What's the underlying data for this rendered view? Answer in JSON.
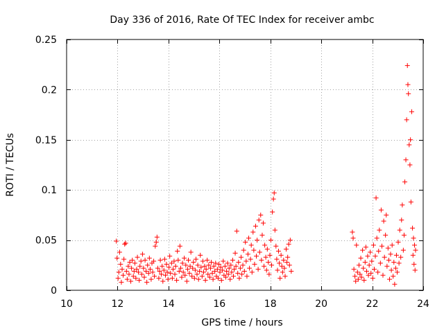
{
  "chart_data": {
    "type": "scatter",
    "title": "Day 336 of 2016, Rate Of TEC Index for receiver ambc",
    "xlabel": "GPS time / hours",
    "ylabel": "ROTI / TECUs",
    "xlim": [
      10,
      24
    ],
    "ylim": [
      0,
      0.25
    ],
    "xticks": [
      10,
      12,
      14,
      16,
      18,
      20,
      22,
      24
    ],
    "xtick_labels": [
      "10",
      "12",
      "14",
      "16",
      "18",
      "20",
      "22",
      "24"
    ],
    "yticks": [
      0,
      0.05,
      0.1,
      0.15,
      0.2,
      0.25
    ],
    "ytick_labels": [
      "0",
      "0.05",
      "0.1",
      "0.15",
      "0.2",
      "0.25"
    ],
    "grid": true,
    "marker": "+",
    "color": "#ff0000",
    "series": [
      {
        "name": "ROTI",
        "points": [
          [
            11.95,
            0.049
          ],
          [
            11.98,
            0.032
          ],
          [
            12.02,
            0.012
          ],
          [
            12.05,
            0.018
          ],
          [
            12.08,
            0.038
          ],
          [
            12.12,
            0.026
          ],
          [
            12.15,
            0.008
          ],
          [
            12.18,
            0.021
          ],
          [
            12.22,
            0.015
          ],
          [
            12.25,
            0.031
          ],
          [
            12.28,
            0.046
          ],
          [
            12.32,
            0.047
          ],
          [
            12.35,
            0.019
          ],
          [
            12.38,
            0.011
          ],
          [
            12.42,
            0.024
          ],
          [
            12.45,
            0.016
          ],
          [
            12.48,
            0.028
          ],
          [
            12.52,
            0.009
          ],
          [
            12.55,
            0.022
          ],
          [
            12.58,
            0.03
          ],
          [
            12.62,
            0.014
          ],
          [
            12.65,
            0.019
          ],
          [
            12.68,
            0.027
          ],
          [
            12.72,
            0.012
          ],
          [
            12.75,
            0.021
          ],
          [
            12.78,
            0.033
          ],
          [
            12.82,
            0.018
          ],
          [
            12.85,
            0.01
          ],
          [
            12.88,
            0.024
          ],
          [
            12.92,
            0.029
          ],
          [
            12.95,
            0.016
          ],
          [
            12.98,
            0.036
          ],
          [
            13.02,
            0.022
          ],
          [
            13.05,
            0.013
          ],
          [
            13.08,
            0.03
          ],
          [
            13.12,
            0.019
          ],
          [
            13.15,
            0.008
          ],
          [
            13.18,
            0.025
          ],
          [
            13.22,
            0.017
          ],
          [
            13.25,
            0.032
          ],
          [
            13.28,
            0.021
          ],
          [
            13.32,
            0.011
          ],
          [
            13.35,
            0.027
          ],
          [
            13.38,
            0.018
          ],
          [
            13.42,
            0.029
          ],
          [
            13.45,
            0.014
          ],
          [
            13.48,
            0.044
          ],
          [
            13.52,
            0.048
          ],
          [
            13.55,
            0.053
          ],
          [
            13.58,
            0.022
          ],
          [
            13.62,
            0.012
          ],
          [
            13.65,
            0.019
          ],
          [
            13.68,
            0.03
          ],
          [
            13.72,
            0.016
          ],
          [
            13.75,
            0.024
          ],
          [
            13.78,
            0.009
          ],
          [
            13.82,
            0.02
          ],
          [
            13.85,
            0.031
          ],
          [
            13.88,
            0.015
          ],
          [
            13.92,
            0.026
          ],
          [
            13.95,
            0.018
          ],
          [
            13.98,
            0.011
          ],
          [
            14.02,
            0.023
          ],
          [
            14.05,
            0.034
          ],
          [
            14.08,
            0.017
          ],
          [
            14.12,
            0.027
          ],
          [
            14.15,
            0.012
          ],
          [
            14.18,
            0.021
          ],
          [
            14.22,
            0.029
          ],
          [
            14.25,
            0.016
          ],
          [
            14.28,
            0.024
          ],
          [
            14.32,
            0.01
          ],
          [
            14.35,
            0.039
          ],
          [
            14.38,
            0.03
          ],
          [
            14.42,
            0.019
          ],
          [
            14.45,
            0.044
          ],
          [
            14.48,
            0.022
          ],
          [
            14.52,
            0.013
          ],
          [
            14.55,
            0.027
          ],
          [
            14.58,
            0.018
          ],
          [
            14.62,
            0.032
          ],
          [
            14.65,
            0.015
          ],
          [
            14.68,
            0.025
          ],
          [
            14.72,
            0.009
          ],
          [
            14.75,
            0.021
          ],
          [
            14.78,
            0.03
          ],
          [
            14.82,
            0.017
          ],
          [
            14.85,
            0.024
          ],
          [
            14.88,
            0.038
          ],
          [
            14.92,
            0.014
          ],
          [
            14.95,
            0.022
          ],
          [
            14.98,
            0.028
          ],
          [
            15.02,
            0.012
          ],
          [
            15.05,
            0.02
          ],
          [
            15.08,
            0.031
          ],
          [
            15.12,
            0.016
          ],
          [
            15.15,
            0.025
          ],
          [
            15.18,
            0.011
          ],
          [
            15.22,
            0.019
          ],
          [
            15.25,
            0.035
          ],
          [
            15.28,
            0.023
          ],
          [
            15.32,
            0.014
          ],
          [
            15.35,
            0.029
          ],
          [
            15.38,
            0.018
          ],
          [
            15.42,
            0.024
          ],
          [
            15.45,
            0.01
          ],
          [
            15.48,
            0.021
          ],
          [
            15.52,
            0.03
          ],
          [
            15.55,
            0.016
          ],
          [
            15.58,
            0.025
          ],
          [
            15.62,
            0.013
          ],
          [
            15.65,
            0.022
          ],
          [
            15.68,
            0.028
          ],
          [
            15.72,
            0.017
          ],
          [
            15.75,
            0.011
          ],
          [
            15.78,
            0.024
          ],
          [
            15.82,
            0.019
          ],
          [
            15.85,
            0.027
          ],
          [
            15.88,
            0.014
          ],
          [
            15.92,
            0.021
          ],
          [
            15.95,
            0.012
          ],
          [
            15.98,
            0.026
          ],
          [
            16.02,
            0.018
          ],
          [
            16.05,
            0.023
          ],
          [
            16.08,
            0.01
          ],
          [
            16.12,
            0.02
          ],
          [
            16.15,
            0.029
          ],
          [
            16.18,
            0.015
          ],
          [
            16.22,
            0.024
          ],
          [
            16.25,
            0.013
          ],
          [
            16.28,
            0.019
          ],
          [
            16.32,
            0.027
          ],
          [
            16.35,
            0.016
          ],
          [
            16.38,
            0.022
          ],
          [
            16.42,
            0.011
          ],
          [
            16.45,
            0.025
          ],
          [
            16.48,
            0.018
          ],
          [
            16.52,
            0.03
          ],
          [
            16.55,
            0.014
          ],
          [
            16.58,
            0.021
          ],
          [
            16.62,
            0.037
          ],
          [
            16.65,
            0.024
          ],
          [
            16.68,
            0.059
          ],
          [
            16.72,
            0.017
          ],
          [
            16.75,
            0.028
          ],
          [
            16.78,
            0.012
          ],
          [
            16.82,
            0.022
          ],
          [
            16.85,
            0.033
          ],
          [
            16.88,
            0.016
          ],
          [
            16.92,
            0.025
          ],
          [
            16.95,
            0.04
          ],
          [
            16.98,
            0.019
          ],
          [
            17.02,
            0.048
          ],
          [
            17.05,
            0.029
          ],
          [
            17.08,
            0.014
          ],
          [
            17.12,
            0.036
          ],
          [
            17.15,
            0.052
          ],
          [
            17.18,
            0.022
          ],
          [
            17.22,
            0.031
          ],
          [
            17.25,
            0.045
          ],
          [
            17.28,
            0.018
          ],
          [
            17.32,
            0.058
          ],
          [
            17.35,
            0.04
          ],
          [
            17.38,
            0.026
          ],
          [
            17.42,
            0.064
          ],
          [
            17.45,
            0.034
          ],
          [
            17.48,
            0.05
          ],
          [
            17.52,
            0.021
          ],
          [
            17.55,
            0.07
          ],
          [
            17.58,
            0.038
          ],
          [
            17.62,
            0.075
          ],
          [
            17.65,
            0.03
          ],
          [
            17.68,
            0.055
          ],
          [
            17.72,
            0.067
          ],
          [
            17.75,
            0.024
          ],
          [
            17.78,
            0.045
          ],
          [
            17.82,
            0.033
          ],
          [
            17.85,
            0.02
          ],
          [
            17.88,
            0.041
          ],
          [
            17.92,
            0.028
          ],
          [
            17.95,
            0.016
          ],
          [
            17.98,
            0.035
          ],
          [
            18.02,
            0.05
          ],
          [
            18.05,
            0.025
          ],
          [
            18.08,
            0.078
          ],
          [
            18.12,
            0.091
          ],
          [
            18.15,
            0.097
          ],
          [
            18.18,
            0.06
          ],
          [
            18.22,
            0.044
          ],
          [
            18.25,
            0.031
          ],
          [
            18.28,
            0.02
          ],
          [
            18.32,
            0.039
          ],
          [
            18.35,
            0.027
          ],
          [
            18.38,
            0.012
          ],
          [
            18.42,
            0.035
          ],
          [
            18.45,
            0.024
          ],
          [
            18.48,
            0.018
          ],
          [
            18.52,
            0.03
          ],
          [
            18.55,
            0.022
          ],
          [
            18.58,
            0.014
          ],
          [
            18.62,
            0.041
          ],
          [
            18.65,
            0.028
          ],
          [
            18.68,
            0.033
          ],
          [
            18.72,
            0.046
          ],
          [
            18.75,
            0.025
          ],
          [
            18.78,
            0.05
          ],
          [
            18.82,
            0.019
          ],
          [
            21.22,
            0.058
          ],
          [
            21.25,
            0.052
          ],
          [
            21.28,
            0.021
          ],
          [
            21.32,
            0.014
          ],
          [
            21.35,
            0.009
          ],
          [
            21.38,
            0.045
          ],
          [
            21.42,
            0.018
          ],
          [
            21.45,
            0.011
          ],
          [
            21.48,
            0.025
          ],
          [
            21.52,
            0.016
          ],
          [
            21.55,
            0.032
          ],
          [
            21.58,
            0.013
          ],
          [
            21.62,
            0.04
          ],
          [
            21.65,
            0.022
          ],
          [
            21.68,
            0.01
          ],
          [
            21.72,
            0.028
          ],
          [
            21.75,
            0.043
          ],
          [
            21.78,
            0.019
          ],
          [
            21.82,
            0.034
          ],
          [
            21.85,
            0.015
          ],
          [
            21.88,
            0.025
          ],
          [
            21.92,
            0.038
          ],
          [
            21.95,
            0.017
          ],
          [
            21.98,
            0.029
          ],
          [
            22.02,
            0.012
          ],
          [
            22.05,
            0.045
          ],
          [
            22.08,
            0.021
          ],
          [
            22.12,
            0.034
          ],
          [
            22.15,
            0.092
          ],
          [
            22.18,
            0.052
          ],
          [
            22.22,
            0.018
          ],
          [
            22.25,
            0.039
          ],
          [
            22.28,
            0.06
          ],
          [
            22.32,
            0.027
          ],
          [
            22.35,
            0.08
          ],
          [
            22.38,
            0.044
          ],
          [
            22.42,
            0.015
          ],
          [
            22.45,
            0.069
          ],
          [
            22.48,
            0.033
          ],
          [
            22.52,
            0.055
          ],
          [
            22.55,
            0.075
          ],
          [
            22.58,
            0.024
          ],
          [
            22.62,
            0.042
          ],
          [
            22.65,
            0.03
          ],
          [
            22.68,
            0.011
          ],
          [
            22.72,
            0.036
          ],
          [
            22.75,
            0.02
          ],
          [
            22.78,
            0.045
          ],
          [
            22.82,
            0.014
          ],
          [
            22.85,
            0.028
          ],
          [
            22.88,
            0.006
          ],
          [
            22.92,
            0.022
          ],
          [
            22.95,
            0.035
          ],
          [
            22.98,
            0.018
          ],
          [
            23.02,
            0.048
          ],
          [
            23.05,
            0.027
          ],
          [
            23.08,
            0.06
          ],
          [
            23.12,
            0.033
          ],
          [
            23.15,
            0.07
          ],
          [
            23.18,
            0.085
          ],
          [
            23.22,
            0.04
          ],
          [
            23.25,
            0.055
          ],
          [
            23.28,
            0.108
          ],
          [
            23.32,
            0.13
          ],
          [
            23.35,
            0.17
          ],
          [
            23.38,
            0.224
          ],
          [
            23.4,
            0.205
          ],
          [
            23.42,
            0.196
          ],
          [
            23.45,
            0.145
          ],
          [
            23.48,
            0.125
          ],
          [
            23.5,
            0.15
          ],
          [
            23.52,
            0.088
          ],
          [
            23.55,
            0.178
          ],
          [
            23.58,
            0.062
          ],
          [
            23.6,
            0.035
          ],
          [
            23.62,
            0.052
          ],
          [
            23.64,
            0.026
          ],
          [
            23.66,
            0.045
          ],
          [
            23.68,
            0.02
          ],
          [
            23.7,
            0.04
          ]
        ]
      }
    ]
  }
}
